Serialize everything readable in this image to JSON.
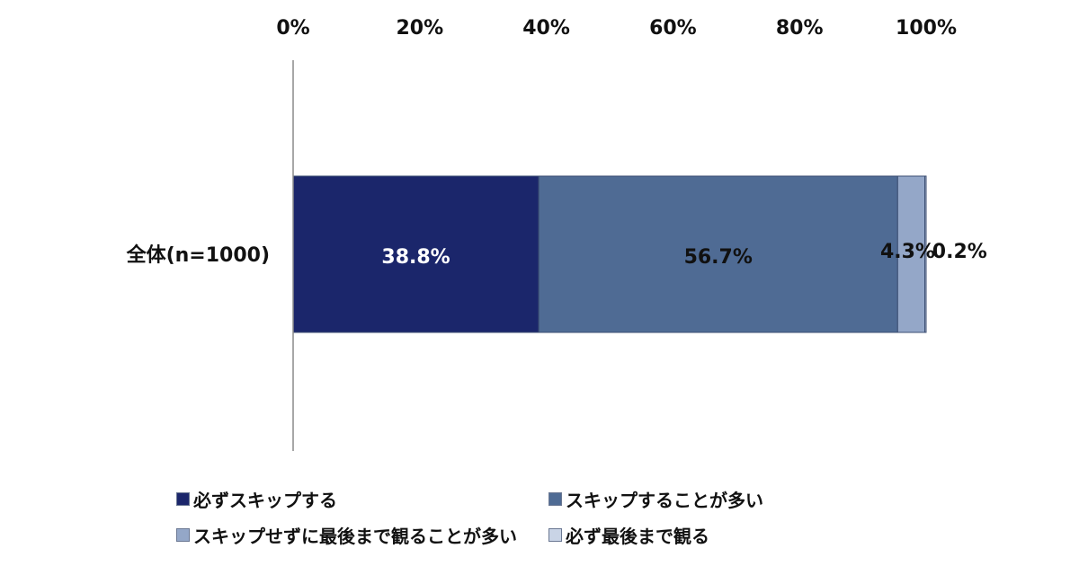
{
  "chart_data": {
    "type": "bar",
    "orientation": "horizontal",
    "stacked": true,
    "categories": [
      "全体(n=1000)"
    ],
    "series": [
      {
        "name": "必ずスキップする",
        "values": [
          38.8
        ],
        "label": "38.8%",
        "color": "#1b266b",
        "label_color": "#ffffff"
      },
      {
        "name": "スキップすることが多い",
        "values": [
          56.7
        ],
        "label": "56.7%",
        "color": "#4f6b94",
        "label_color": "#111111"
      },
      {
        "name": "スキップせずに最後まで観ることが多い",
        "values": [
          4.3
        ],
        "label": "4.3%",
        "color": "#94a7c8",
        "label_color": "#111111"
      },
      {
        "name": "必ず最後まで観る",
        "values": [
          0.2
        ],
        "label": "0.2%",
        "color": "#c9d4e6",
        "label_color": "#111111"
      }
    ],
    "x_ticks": [
      "0%",
      "20%",
      "40%",
      "60%",
      "80%",
      "100%"
    ],
    "xlim": [
      0,
      100
    ],
    "x_axis_position": "top",
    "grid": false,
    "legend_position": "bottom",
    "title": "",
    "xlabel": "",
    "ylabel": ""
  }
}
